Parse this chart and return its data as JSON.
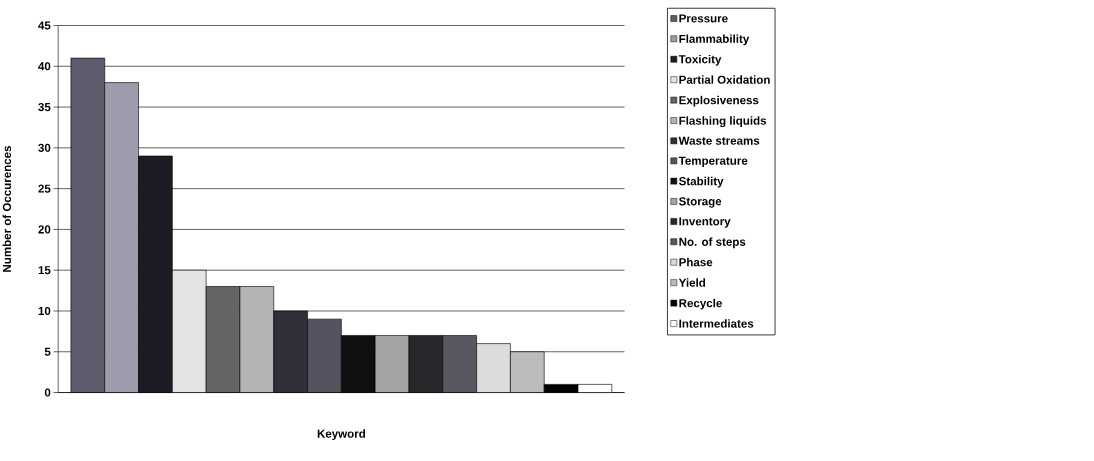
{
  "chart_data": {
    "type": "bar",
    "xlabel": "Keyword",
    "ylabel": "Number of Occurences",
    "categories": [
      null
    ],
    "series": [
      {
        "name": "Pressure",
        "color": "#5c5c6c",
        "values": [
          41
        ]
      },
      {
        "name": "Flammability",
        "color": "#9c9cac",
        "values": [
          38
        ]
      },
      {
        "name": "Toxicity",
        "color": "#1c1c24",
        "values": [
          29
        ]
      },
      {
        "name": "Partial Oxidation",
        "color": "#e4e4e4",
        "values": [
          15
        ]
      },
      {
        "name": "Explosiveness",
        "color": "#646464",
        "values": [
          13
        ]
      },
      {
        "name": "Flashing liquids",
        "color": "#b4b4b4",
        "values": [
          13
        ]
      },
      {
        "name": "Waste streams",
        "color": "#303038",
        "values": [
          10
        ]
      },
      {
        "name": "Temperature",
        "color": "#545460",
        "values": [
          9
        ]
      },
      {
        "name": "Stability",
        "color": "#101010",
        "values": [
          7
        ]
      },
      {
        "name": "Storage",
        "color": "#a4a4a4",
        "values": [
          7
        ]
      },
      {
        "name": "Inventory",
        "color": "#28282c",
        "values": [
          7
        ]
      },
      {
        "name": "No. of steps",
        "color": "#585860",
        "values": [
          7
        ]
      },
      {
        "name": "Phase",
        "color": "#dcdcdc",
        "values": [
          6
        ]
      },
      {
        "name": "Yield",
        "color": "#bcbcbc",
        "values": [
          5
        ]
      },
      {
        "name": "Recycle",
        "color": "#000000",
        "values": [
          1
        ]
      },
      {
        "name": "Intermediates",
        "color": "#ffffff",
        "values": [
          1
        ]
      }
    ],
    "ylim": [
      0,
      45
    ],
    "yticks": [
      0,
      5,
      10,
      15,
      20,
      25,
      30,
      35,
      40,
      45
    ],
    "grid": "y",
    "legend": "right",
    "tick_labels": "y"
  }
}
